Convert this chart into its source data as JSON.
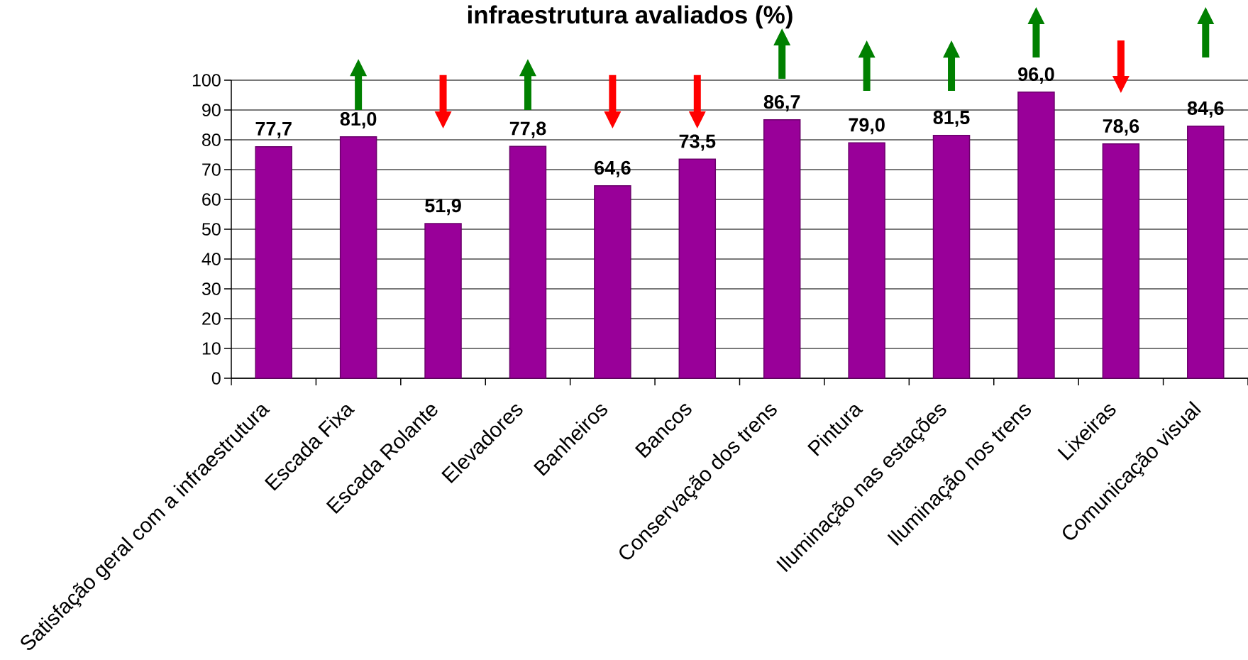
{
  "chart_data": {
    "type": "bar",
    "title": "infraestrutura avaliados (%)",
    "categories": [
      "Satisfação geral com a infraestrutura",
      "Escada Fixa",
      "Escada Rolante",
      "Elevadores",
      "Banheiros",
      "Bancos",
      "Conservação dos trens",
      "Pintura",
      "Iluminação nas estações",
      "Iluminação nos trens",
      "Lixeiras",
      "Comunicação visual"
    ],
    "values": [
      77.7,
      81.0,
      51.9,
      77.8,
      64.6,
      73.5,
      86.7,
      79.0,
      81.5,
      96.0,
      78.6,
      84.6
    ],
    "value_labels": [
      "77,7",
      "81,0",
      "51,9",
      "77,8",
      "64,6",
      "73,5",
      "86,7",
      "79,0",
      "81,5",
      "96,0",
      "78,6",
      "84,6"
    ],
    "color": "#990099",
    "ylim": [
      0,
      100
    ],
    "yticks": [
      0,
      10,
      20,
      30,
      40,
      50,
      60,
      70,
      80,
      90,
      100
    ],
    "grid": "y"
  }
}
